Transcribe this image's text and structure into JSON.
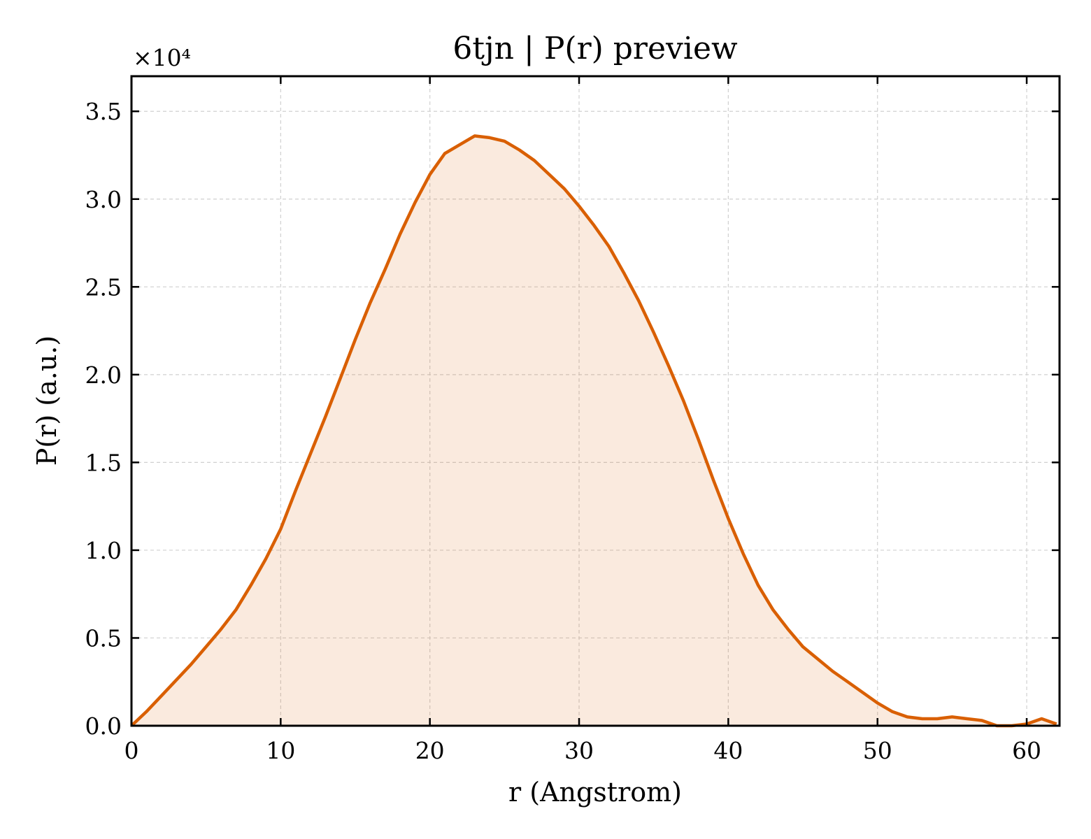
{
  "chart_data": {
    "type": "area",
    "title": "6tjn | P(r) preview",
    "xlabel": "r (Angstrom)",
    "ylabel": "P(r) (a.u.)",
    "y_offset_label": "×10⁴",
    "xlim": [
      0,
      62.2
    ],
    "ylim": [
      0,
      3.7
    ],
    "y_scale": 10000,
    "x_ticks": [
      0,
      10,
      20,
      30,
      40,
      50,
      60
    ],
    "x_tick_labels": [
      "0",
      "10",
      "20",
      "30",
      "40",
      "50",
      "60"
    ],
    "y_ticks": [
      0.0,
      0.5,
      1.0,
      1.5,
      2.0,
      2.5,
      3.0,
      3.5
    ],
    "y_tick_labels": [
      "0.0",
      "0.5",
      "1.0",
      "1.5",
      "2.0",
      "2.5",
      "3.0",
      "3.5"
    ],
    "grid": true,
    "colors": {
      "line": "#d95f02",
      "fill": "#d95f02"
    },
    "series": [
      {
        "x": [
          0,
          1,
          2,
          3,
          4,
          5,
          6,
          7,
          8,
          9,
          10,
          11,
          12,
          13,
          14,
          15,
          16,
          17,
          18,
          19,
          20,
          21,
          22,
          23,
          24,
          25,
          26,
          27,
          28,
          29,
          30,
          31,
          32,
          33,
          34,
          35,
          36,
          37,
          38,
          39,
          40,
          41,
          42,
          43,
          44,
          45,
          46,
          47,
          48,
          49,
          50,
          51,
          52,
          53,
          54,
          55,
          56,
          57,
          58,
          59,
          60,
          61,
          62
        ],
        "values": [
          0.0,
          0.08,
          0.17,
          0.26,
          0.35,
          0.45,
          0.55,
          0.66,
          0.8,
          0.95,
          1.12,
          1.34,
          1.55,
          1.76,
          1.98,
          2.2,
          2.41,
          2.6,
          2.8,
          2.98,
          3.14,
          3.26,
          3.31,
          3.36,
          3.35,
          3.33,
          3.28,
          3.22,
          3.14,
          3.06,
          2.96,
          2.85,
          2.73,
          2.58,
          2.42,
          2.24,
          2.05,
          1.85,
          1.63,
          1.4,
          1.18,
          0.98,
          0.8,
          0.66,
          0.55,
          0.45,
          0.38,
          0.31,
          0.25,
          0.19,
          0.13,
          0.08,
          0.05,
          0.04,
          0.04,
          0.05,
          0.04,
          0.03,
          0.0,
          0.0,
          0.01,
          0.04,
          0.01
        ]
      }
    ]
  }
}
